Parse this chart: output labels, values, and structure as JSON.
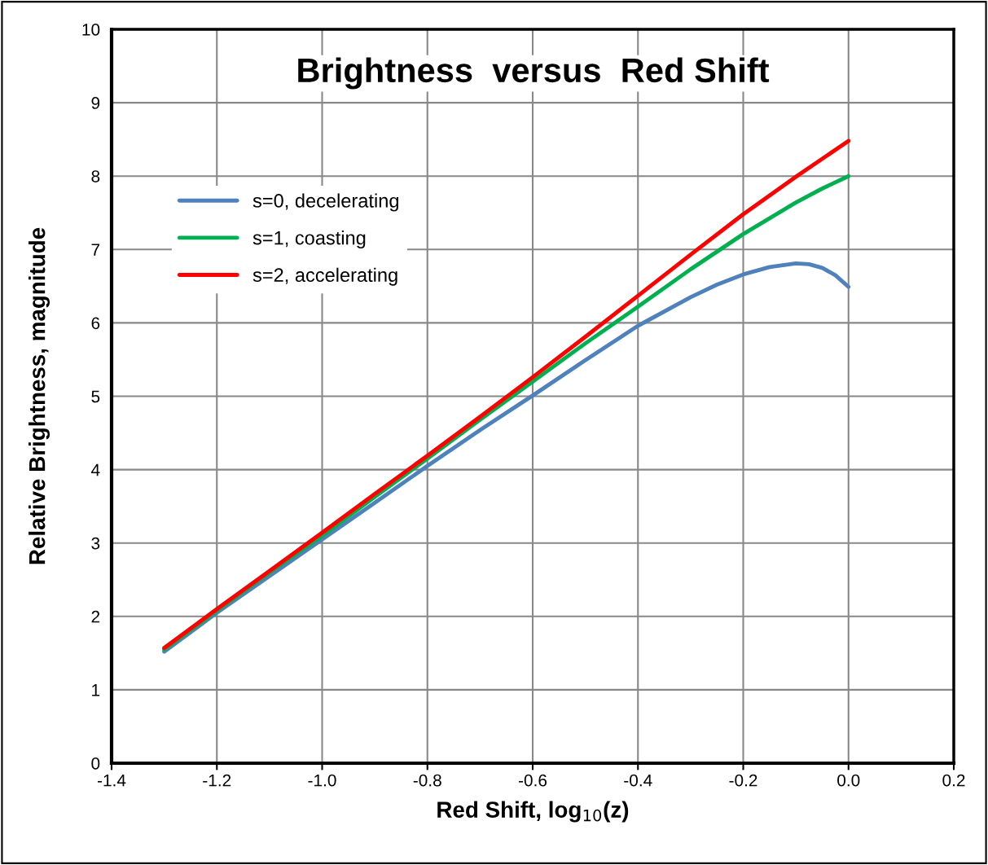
{
  "chart_data": {
    "type": "line",
    "title": "Brightness  versus  Red Shift",
    "xlabel": "Red Shift, log$_{10}$(z)",
    "ylabel": "Relative Brightness, magnitude",
    "series": [
      {
        "name": "s=0, decelerating",
        "color": "#4f81bd",
        "x": [
          -1.3,
          -1.2,
          -1.1,
          -1.0,
          -0.9,
          -0.8,
          -0.7,
          -0.6,
          -0.5,
          -0.4,
          -0.3,
          -0.25,
          -0.2,
          -0.15,
          -0.1,
          -0.075,
          -0.05,
          -0.025,
          0.0
        ],
        "values": [
          1.52,
          2.05,
          2.55,
          3.05,
          3.55,
          4.05,
          4.54,
          5.01,
          5.49,
          5.96,
          6.35,
          6.52,
          6.66,
          6.76,
          6.81,
          6.8,
          6.75,
          6.65,
          6.49
        ]
      },
      {
        "name": "s=1, coasting",
        "color": "#00b050",
        "x": [
          -1.3,
          -1.2,
          -1.1,
          -1.0,
          -0.9,
          -0.8,
          -0.7,
          -0.6,
          -0.5,
          -0.4,
          -0.3,
          -0.2,
          -0.1,
          -0.05,
          0.0
        ],
        "values": [
          1.55,
          2.08,
          2.6,
          3.1,
          3.63,
          4.15,
          4.68,
          5.2,
          5.72,
          6.22,
          6.73,
          7.21,
          7.64,
          7.83,
          8.0
        ]
      },
      {
        "name": "s=2, accelerating",
        "color": "#ff0000",
        "x": [
          -1.3,
          -1.2,
          -1.1,
          -1.0,
          -0.9,
          -0.8,
          -0.7,
          -0.6,
          -0.5,
          -0.4,
          -0.3,
          -0.2,
          -0.1,
          0.0
        ],
        "values": [
          1.57,
          2.1,
          2.62,
          3.14,
          3.67,
          4.19,
          4.72,
          5.26,
          5.81,
          6.37,
          6.93,
          7.48,
          7.99,
          8.48
        ]
      }
    ],
    "xlim": [
      -1.4,
      0.2
    ],
    "xticks": [
      -1.4,
      -1.2,
      {
        "value": -1.0,
        "label": "-1.0"
      },
      -0.8,
      -0.6,
      -0.4,
      -0.2,
      {
        "value": 0.0,
        "label": "0.0"
      },
      0.2
    ],
    "ylim": [
      0,
      10
    ],
    "yticks": [
      0,
      1,
      2,
      3,
      4,
      5,
      6,
      7,
      8,
      9,
      10
    ],
    "grid": true,
    "legend": "top left",
    "marker": "none",
    "line_style": "solid"
  }
}
